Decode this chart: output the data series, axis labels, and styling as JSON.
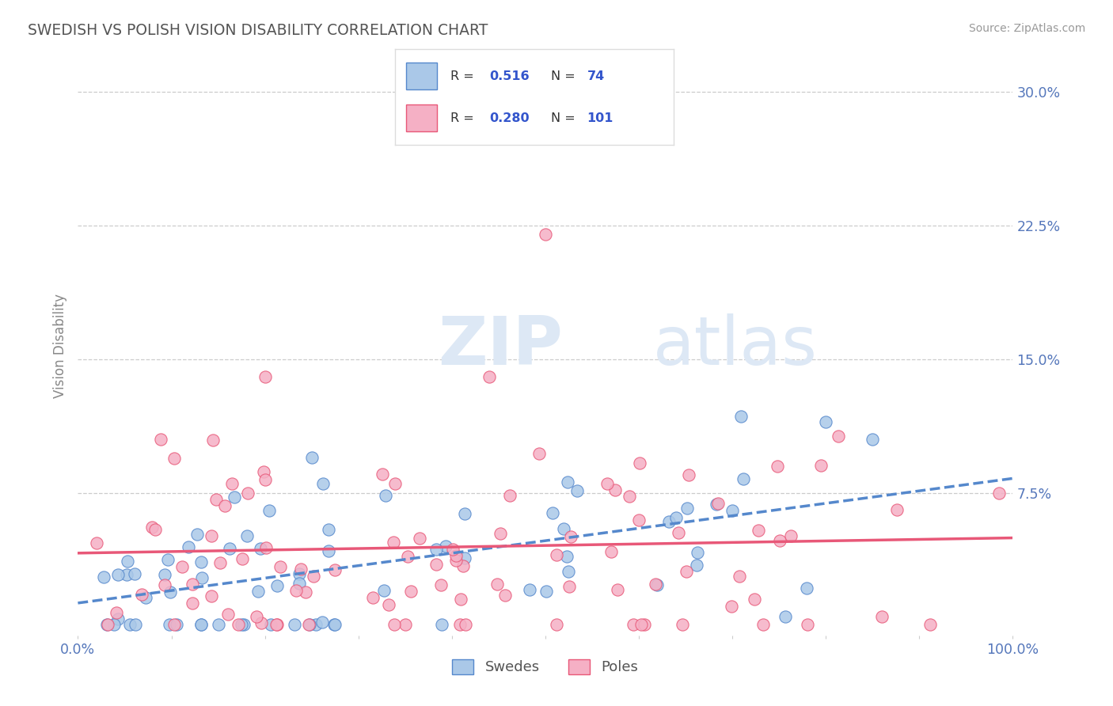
{
  "title": "SWEDISH VS POLISH VISION DISABILITY CORRELATION CHART",
  "source": "Source: ZipAtlas.com",
  "ylabel": "Vision Disability",
  "xlim": [
    0.0,
    1.0
  ],
  "ylim": [
    -0.005,
    0.32
  ],
  "yticks": [
    0.0,
    0.075,
    0.15,
    0.225,
    0.3
  ],
  "ytick_labels": [
    "",
    "7.5%",
    "15.0%",
    "22.5%",
    "30.0%"
  ],
  "swedes_color": "#aac8e8",
  "poles_color": "#f5b0c5",
  "trend_swedes_color": "#5588cc",
  "trend_poles_color": "#e85878",
  "background_color": "#ffffff",
  "grid_color": "#cccccc",
  "title_color": "#555555",
  "axis_label_color": "#5577bb",
  "legend_text_color": "#333333",
  "legend_value_color": "#3355cc",
  "swedes_R": 0.516,
  "swedes_N": 74,
  "poles_R": 0.28,
  "poles_N": 101,
  "watermark_zip": "ZIP",
  "watermark_atlas": "atlas",
  "watermark_color": "#dde8f5"
}
